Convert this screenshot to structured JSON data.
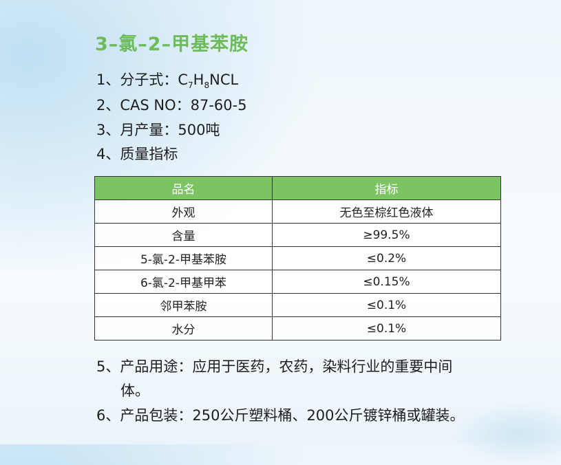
{
  "title": "3–氯–2–甲基苯胺",
  "items": {
    "formula_prefix": "1、分子式：C",
    "formula_sub1": "7",
    "formula_mid": "H",
    "formula_sub2": "8",
    "formula_suffix": "NCL",
    "cas": "2、CAS NO：87-60-5",
    "output": "3、月产量：500吨",
    "quality": "4、质量指标",
    "use_line1": "5、产品用途：应用于医药，农药，染料行业的重要中间",
    "use_line2": "体。",
    "packaging": "6、产品包装：250公斤塑料桶、200公斤镀锌桶或罐装。"
  },
  "table": {
    "headers": [
      "品名",
      "指标"
    ],
    "rows": [
      [
        "外观",
        "无色至棕红色液体"
      ],
      [
        "含量",
        "≥99.5%"
      ],
      [
        "5-氯-2-甲基苯胺",
        "≤0.2%"
      ],
      [
        "6-氯-2-甲基甲苯",
        "≤0.15%"
      ],
      [
        "邻甲苯胺",
        "≤0.1%"
      ],
      [
        "水分",
        "≤0.1%"
      ]
    ]
  },
  "colors": {
    "accent": "#6dbb5a",
    "header_bg": "#7cc364"
  }
}
